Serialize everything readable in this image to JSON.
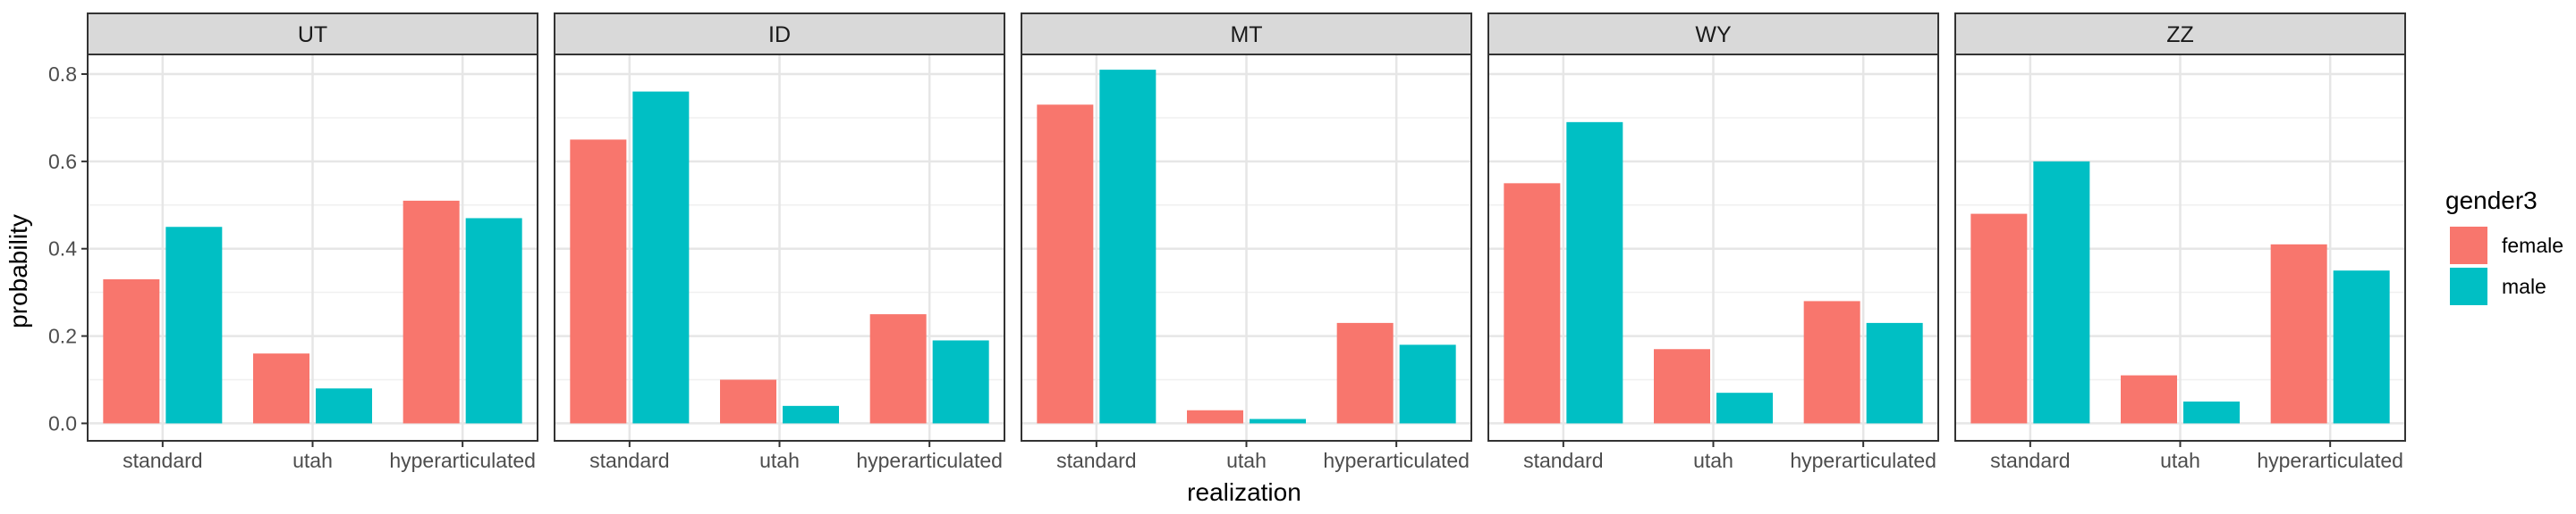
{
  "chart_data": {
    "type": "bar",
    "facets": [
      "UT",
      "ID",
      "MT",
      "WY",
      "ZZ"
    ],
    "categories": [
      "standard",
      "utah",
      "hyperarticulated"
    ],
    "series": [
      {
        "name": "female",
        "color": "#F8766D"
      },
      {
        "name": "male",
        "color": "#00BFC4"
      }
    ],
    "values": {
      "UT": {
        "female": [
          0.33,
          0.16,
          0.51
        ],
        "male": [
          0.45,
          0.08,
          0.47
        ]
      },
      "ID": {
        "female": [
          0.65,
          0.1,
          0.25
        ],
        "male": [
          0.76,
          0.04,
          0.19
        ]
      },
      "MT": {
        "female": [
          0.73,
          0.03,
          0.23
        ],
        "male": [
          0.81,
          0.01,
          0.18
        ]
      },
      "WY": {
        "female": [
          0.55,
          0.17,
          0.28
        ],
        "male": [
          0.69,
          0.07,
          0.23
        ]
      },
      "ZZ": {
        "female": [
          0.48,
          0.11,
          0.41
        ],
        "male": [
          0.6,
          0.05,
          0.35
        ]
      }
    },
    "xlabel": "realization",
    "ylabel": "probability",
    "ylim": [
      -0.04,
      0.845
    ],
    "yticks": [
      0.0,
      0.2,
      0.4,
      0.6,
      0.8
    ],
    "ytick_labels": [
      "0.0",
      "0.2",
      "0.4",
      "0.6",
      "0.8"
    ],
    "legend_title": "gender3",
    "legend_position": "right",
    "grid": true
  }
}
